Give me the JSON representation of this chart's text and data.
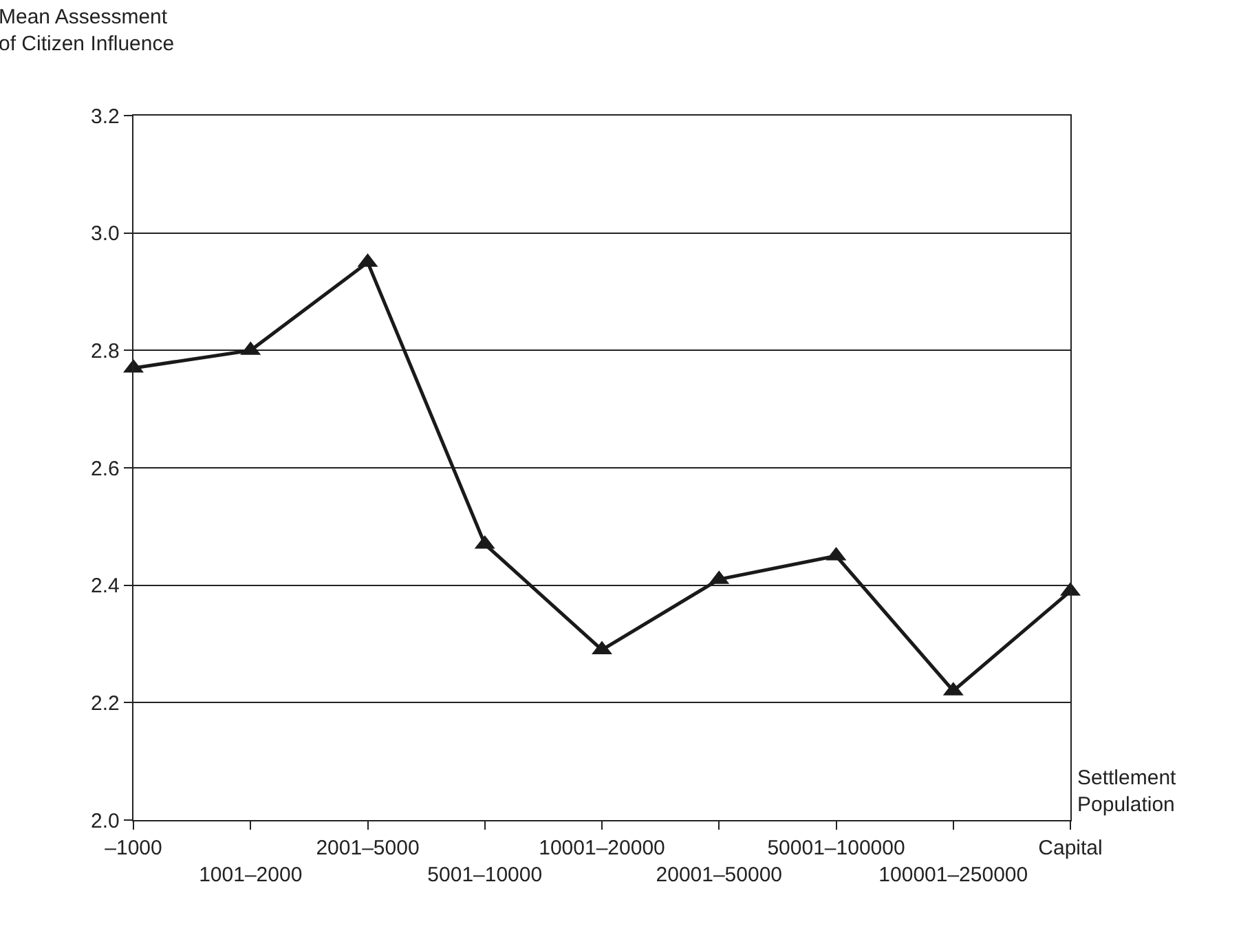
{
  "chart_data": {
    "type": "line",
    "xlabel": "Settlement\nPopulation",
    "ylabel": "Mean Assessment\nof Citizen Influence",
    "categories": [
      "–1000",
      "1001–2000",
      "2001–5000",
      "5001–10000",
      "10001–20000",
      "20001–50000",
      "50001–100000",
      "100001–250000",
      "Capital"
    ],
    "series": [
      {
        "color": "#1a1a1a",
        "values": [
          2.77,
          2.8,
          2.95,
          2.47,
          2.29,
          2.41,
          2.45,
          2.22,
          2.39
        ]
      }
    ],
    "ylim": [
      2.0,
      3.2
    ],
    "yticks": [
      {
        "value": 2,
        "label": "2.0"
      },
      {
        "value": 2.2,
        "label": "2.2"
      },
      {
        "value": 2.4,
        "label": "2.4"
      },
      {
        "value": 2.6,
        "label": "2.6"
      },
      {
        "value": 2.8,
        "label": "2.8"
      },
      {
        "value": 3,
        "label": "3.0"
      },
      {
        "value": 3.2,
        "label": "3.2"
      }
    ],
    "grid": "y",
    "marker": "triangle",
    "line_style": "solid"
  }
}
